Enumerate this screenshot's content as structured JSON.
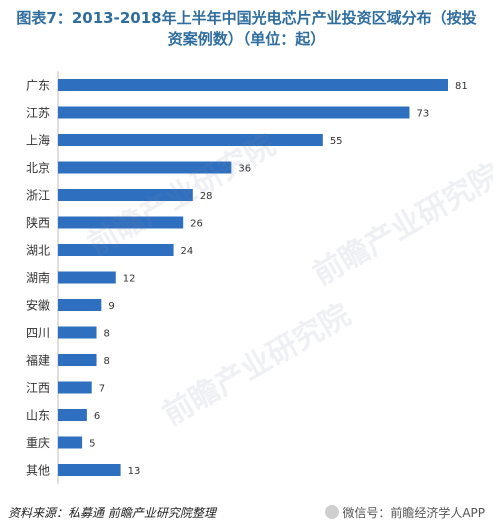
{
  "title": "图表7：2013-2018年上半年中国光电芯片产业投资区域分布（按投资案例数）（单位：起）",
  "footer": {
    "source": "资料来源：私募通   前瞻产业研究院整理",
    "brand": "微信号：前瞻经济学人APP"
  },
  "watermark": "前瞻产业研究院",
  "colors": {
    "bar": "#2f6fbf",
    "title": "#2f6d9e"
  },
  "chart_data": {
    "type": "bar",
    "orientation": "horizontal",
    "categories": [
      "广东",
      "江苏",
      "上海",
      "北京",
      "浙江",
      "陕西",
      "湖北",
      "湖南",
      "安徽",
      "四川",
      "福建",
      "江西",
      "山东",
      "重庆",
      "其他"
    ],
    "values": [
      81,
      73,
      55,
      36,
      28,
      26,
      24,
      12,
      9,
      8,
      8,
      7,
      6,
      5,
      13
    ],
    "xlim": [
      0,
      81
    ],
    "grid": false,
    "legend": "none"
  }
}
